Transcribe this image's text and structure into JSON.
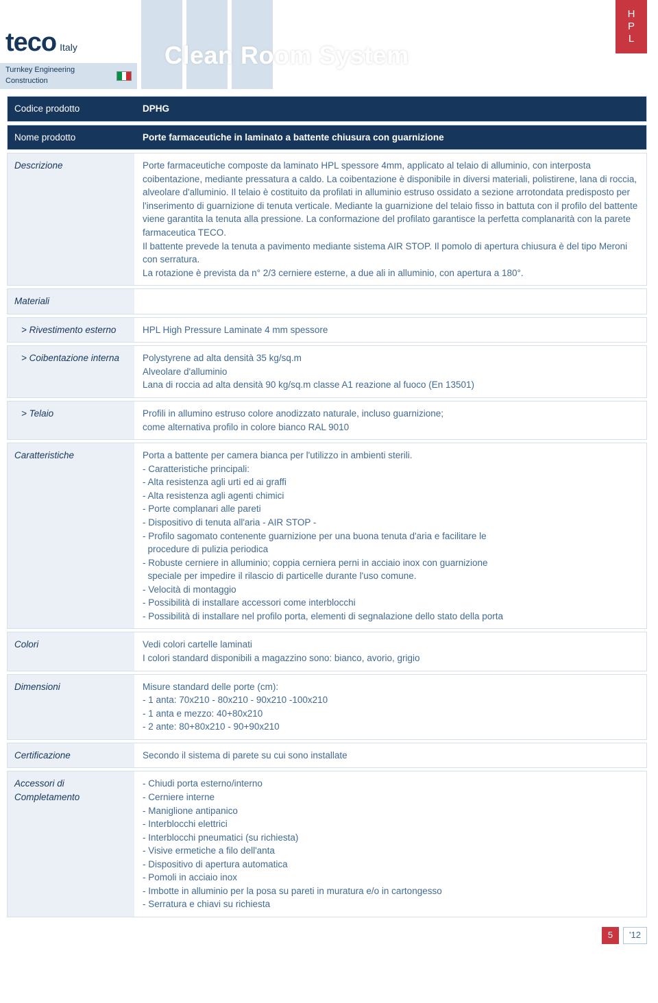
{
  "header": {
    "logo_main": "teco",
    "logo_italy": "Italy",
    "logo_sub": "Turnkey Engineering Construction",
    "title": "Clean Room System",
    "hpl": [
      "H",
      "P",
      "L"
    ]
  },
  "rows": {
    "codice_label": "Codice prodotto",
    "codice_value": "DPHG",
    "nome_label": "Nome prodotto",
    "nome_value": "Porte farmaceutiche in laminato a battente chiusura con guarnizione",
    "descrizione_label": "Descrizione",
    "descrizione_p1": "Porte farmaceutiche composte da laminato HPL spessore 4mm, applicato al telaio di alluminio, con interposta coibentazione, mediante pressatura a caldo. La coibentazione è disponibile in diversi materiali, polistirene, lana di roccia, alveolare d'alluminio. Il telaio è costituito da profilati in alluminio estruso ossidato a sezione arrotondata predisposto per l'inserimento di guarnizione di tenuta verticale. Mediante la guarnizione del telaio fisso in battuta con il profilo del battente viene garantita la tenuta alla pressione. La conformazione del profilato garantisce la perfetta complanarità con la parete farmaceutica TECO.",
    "descrizione_p2": "Il battente prevede la tenuta a pavimento mediante sistema AIR STOP. Il pomolo di apertura chiusura è del tipo Meroni con serratura.",
    "descrizione_p3": "La rotazione è prevista da n° 2/3 cerniere esterne, a due ali in alluminio, con apertura a 180°.",
    "materiali_label": "Materiali",
    "rivestimento_label": "> Rivestimento esterno",
    "rivestimento_value": "HPL High Pressure Laminate 4 mm spessore",
    "coibentazione_label": "> Coibentazione interna",
    "coibentazione_l1": "Polystyrene ad alta densità 35 kg/sq.m",
    "coibentazione_l2": "Alveolare d'alluminio",
    "coibentazione_l3": "Lana di roccia ad alta densità 90 kg/sq.m classe A1 reazione al fuoco (En 13501)",
    "telaio_label": "> Telaio",
    "telaio_l1": "Profili in allumino estruso colore anodizzato naturale, incluso guarnizione;",
    "telaio_l2": "come alternativa  profilo in colore bianco RAL 9010",
    "carat_label": "Caratteristiche",
    "carat_l01": "Porta a battente per camera bianca per l'utilizzo in ambienti sterili.",
    "carat_l02": "- Caratteristiche principali:",
    "carat_l03": "- Alta resistenza agli urti ed ai graffi",
    "carat_l04": "- Alta resistenza agli agenti chimici",
    "carat_l05": "- Porte complanari alle pareti",
    "carat_l06": "- Dispositivo di tenuta all'aria - AIR STOP -",
    "carat_l07": "- Profilo sagomato contenente guarnizione per una buona tenuta d'aria e facilitare le",
    "carat_l08": "  procedure di pulizia periodica",
    "carat_l09": "- Robuste cerniere in alluminio; coppia cerniera perni in acciaio inox con guarnizione",
    "carat_l10": "  speciale per impedire il rilascio di particelle durante l'uso comune.",
    "carat_l11": "- Velocità di montaggio",
    "carat_l12": "- Possibilità di installare accessori come interblocchi",
    "carat_l13": "- Possibilità di installare nel profilo porta,  elementi di segnalazione dello stato della porta",
    "colori_label": "Colori",
    "colori_l1": "Vedi colori cartelle laminati",
    "colori_l2": "I colori standard disponibili a magazzino sono: bianco, avorio, grigio",
    "dim_label": "Dimensioni",
    "dim_l1": "Misure standard delle porte (cm):",
    "dim_l2": "- 1 anta: 70x210 - 80x210 - 90x210 -100x210",
    "dim_l3": "- 1 anta e mezzo: 40+80x210",
    "dim_l4": "- 2 ante: 80+80x210 - 90+90x210",
    "cert_label": "Certificazione",
    "cert_value": "Secondo il sistema di parete su cui sono installate",
    "acc_label": "Accessori di Completamento",
    "acc_l01": "- Chiudi porta esterno/interno",
    "acc_l02": "- Cerniere interne",
    "acc_l03": "- Maniglione antipanico",
    "acc_l04": "- Interblocchi elettrici",
    "acc_l05": "- Interblocchi pneumatici (su richiesta)",
    "acc_l06": "- Visive ermetiche a filo dell'anta",
    "acc_l07": "- Dispositivo di  apertura automatica",
    "acc_l08": "- Pomoli in acciaio inox",
    "acc_l09": "- Imbotte in alluminio per la posa su  pareti in muratura e/o in cartongesso",
    "acc_l10": "- Serratura e chiavi su richiesta"
  },
  "footer": {
    "page": "5",
    "year": "'12"
  },
  "colors": {
    "navy": "#16365c",
    "lightblue": "#d4e1ec",
    "paleblue": "#eaf0f5",
    "textblue": "#406a93",
    "red": "#c83640"
  }
}
